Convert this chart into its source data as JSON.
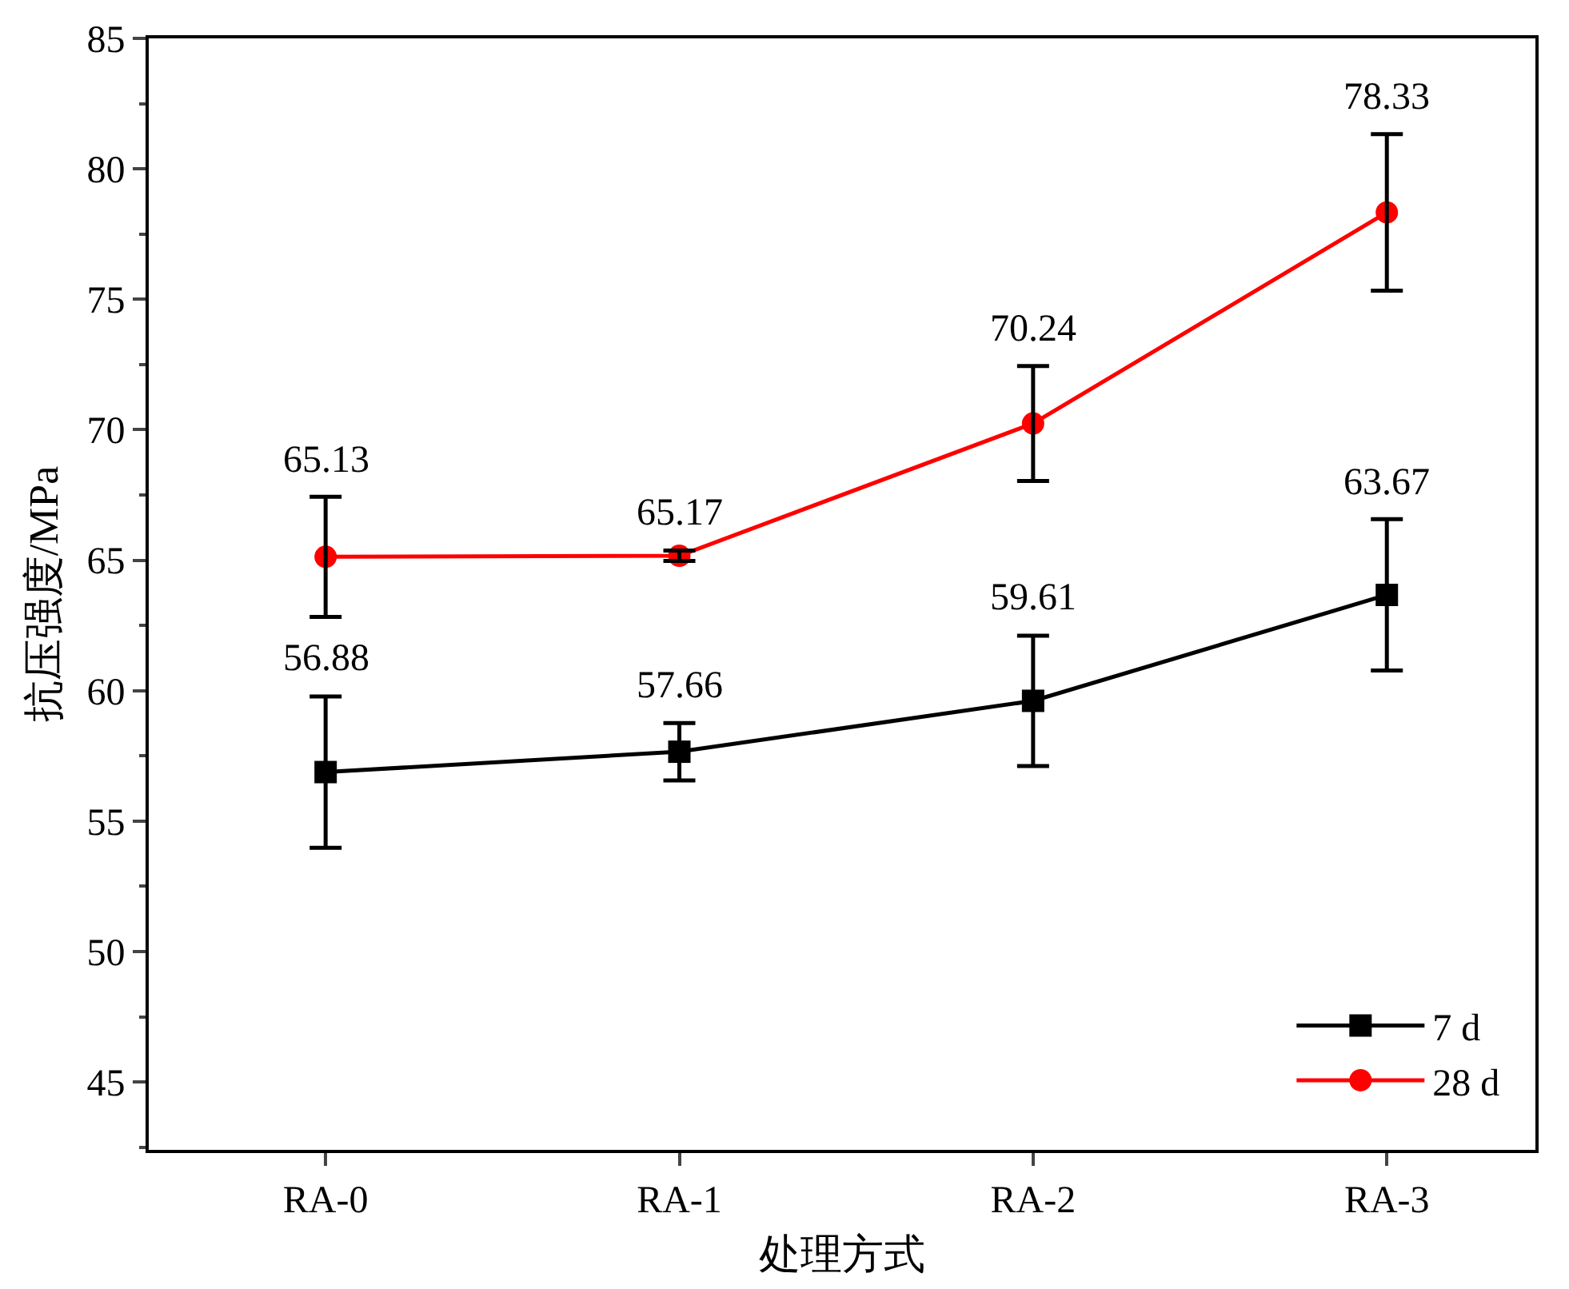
{
  "chart_data": {
    "type": "line",
    "xlabel": "处理方式",
    "ylabel": "抗压强度/MPa",
    "categories": [
      "RA-0",
      "RA-1",
      "RA-2",
      "RA-3"
    ],
    "series": [
      {
        "name": "7 d",
        "color": "#000000",
        "marker": "square",
        "values": [
          56.88,
          57.66,
          59.61,
          63.67
        ],
        "errors": [
          2.9,
          1.1,
          2.5,
          2.9
        ]
      },
      {
        "name": "28 d",
        "color": "#ff0000",
        "marker": "circle",
        "values": [
          65.13,
          65.17,
          70.24,
          78.33
        ],
        "errors": [
          2.3,
          0.2,
          2.2,
          3.0
        ]
      }
    ],
    "ylim": [
      42.4,
      85
    ],
    "yticks": [
      45,
      50,
      55,
      60,
      65,
      70,
      75,
      80,
      85
    ],
    "data_labels": true,
    "legend": "bottom right",
    "line_style": "solid"
  }
}
